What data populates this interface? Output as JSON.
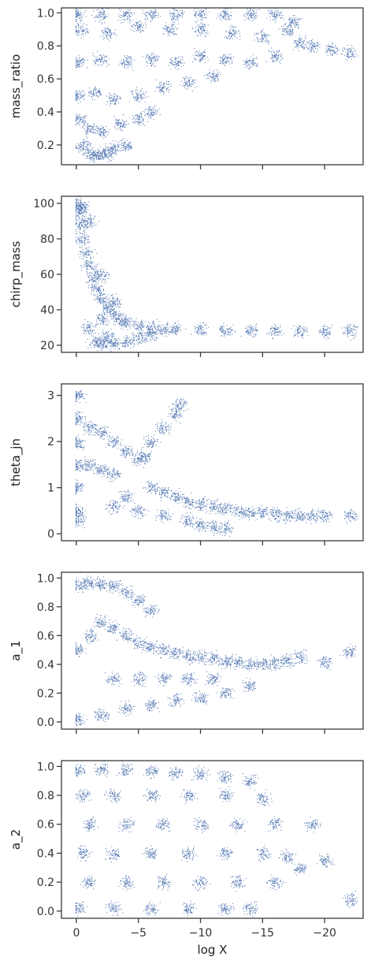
{
  "chart_data": [
    {
      "type": "scatter",
      "ylabel": "mass_ratio",
      "xlabel": "",
      "xlim": [
        1.2,
        -23.1
      ],
      "ylim": [
        0.08,
        1.03
      ],
      "yticks": [
        0.2,
        0.4,
        0.6,
        0.8,
        1.0
      ],
      "ytick_labels": [
        "0.2",
        "0.4",
        "0.6",
        "0.8",
        "1.0"
      ],
      "xticks": [
        0,
        -5,
        -10,
        -15,
        -20
      ],
      "xtick_labels": [],
      "series": [
        {
          "color": "#4c72b0",
          "points": [
            [
              -0.1,
              0.99
            ],
            [
              -2.0,
              0.99
            ],
            [
              -4.0,
              0.99
            ],
            [
              -6.0,
              0.99
            ],
            [
              -8.0,
              0.99
            ],
            [
              -10.0,
              0.99
            ],
            [
              -12.0,
              0.99
            ],
            [
              -14.0,
              0.99
            ],
            [
              -16.0,
              0.99
            ],
            [
              -0.3,
              0.9
            ],
            [
              -2.5,
              0.88
            ],
            [
              -5.0,
              0.92
            ],
            [
              -7.5,
              0.9
            ],
            [
              -10.0,
              0.9
            ],
            [
              -12.5,
              0.88
            ],
            [
              -15.0,
              0.86
            ],
            [
              -17.0,
              0.9
            ],
            [
              -0.2,
              0.7
            ],
            [
              -2.0,
              0.72
            ],
            [
              -4.0,
              0.7
            ],
            [
              -6.0,
              0.72
            ],
            [
              -8.0,
              0.7
            ],
            [
              -10.0,
              0.74
            ],
            [
              -12.0,
              0.72
            ],
            [
              -14.0,
              0.7
            ],
            [
              -16.0,
              0.74
            ],
            [
              -0.1,
              0.5
            ],
            [
              -1.5,
              0.52
            ],
            [
              -3.0,
              0.48
            ],
            [
              -5.0,
              0.5
            ],
            [
              -7.0,
              0.55
            ],
            [
              -9.0,
              0.58
            ],
            [
              -11.0,
              0.62
            ],
            [
              -0.2,
              0.35
            ],
            [
              -1.0,
              0.3
            ],
            [
              -2.0,
              0.28
            ],
            [
              -3.5,
              0.33
            ],
            [
              -5.0,
              0.36
            ],
            [
              -6.0,
              0.4
            ],
            [
              -0.5,
              0.2
            ],
            [
              -1.0,
              0.15
            ],
            [
              -1.5,
              0.14
            ],
            [
              -2.0,
              0.14
            ],
            [
              -2.5,
              0.15
            ],
            [
              -3.0,
              0.18
            ],
            [
              -4.0,
              0.2
            ],
            [
              -18.0,
              0.82
            ],
            [
              -19.0,
              0.8
            ],
            [
              -20.5,
              0.78
            ],
            [
              -22.0,
              0.76
            ],
            [
              -17.5,
              0.95
            ]
          ]
        }
      ]
    },
    {
      "type": "scatter",
      "ylabel": "chirp_mass",
      "xlabel": "",
      "xlim": [
        1.2,
        -23.1
      ],
      "ylim": [
        16,
        104
      ],
      "yticks": [
        20,
        40,
        60,
        80,
        100
      ],
      "ytick_labels": [
        "20",
        "40",
        "60",
        "80",
        "100"
      ],
      "xticks": [
        0,
        -5,
        -10,
        -15,
        -20
      ],
      "xtick_labels": [],
      "series": [
        {
          "color": "#4c72b0",
          "points": [
            [
              -0.1,
              100
            ],
            [
              -0.2,
              95
            ],
            [
              -0.3,
              88
            ],
            [
              -0.5,
              80
            ],
            [
              -0.8,
              72
            ],
            [
              -1.0,
              65
            ],
            [
              -1.3,
              58
            ],
            [
              -1.6,
              52
            ],
            [
              -2.0,
              47
            ],
            [
              -2.5,
              42
            ],
            [
              -3.0,
              38
            ],
            [
              -3.5,
              35
            ],
            [
              -4.0,
              33
            ],
            [
              -5.0,
              31
            ],
            [
              -6.0,
              30
            ],
            [
              -7.0,
              29.5
            ],
            [
              -8.0,
              29
            ],
            [
              -10.0,
              28.8
            ],
            [
              -12.0,
              28.5
            ],
            [
              -14.0,
              28.3
            ],
            [
              -16.0,
              28.2
            ],
            [
              -18.0,
              28
            ],
            [
              -20.0,
              28
            ],
            [
              -22.0,
              28
            ],
            [
              -1.5,
              22
            ],
            [
              -2.0,
              21
            ],
            [
              -3.0,
              21
            ],
            [
              -4.0,
              22
            ],
            [
              -5.0,
              24
            ],
            [
              -6.0,
              26
            ],
            [
              -1.0,
              30
            ],
            [
              -2.0,
              35
            ],
            [
              -2.5,
              25
            ],
            [
              -0.5,
              98
            ],
            [
              -1.0,
              90
            ],
            [
              -2.0,
              60
            ],
            [
              -3.0,
              45
            ]
          ]
        }
      ]
    },
    {
      "type": "scatter",
      "ylabel": "theta_jn",
      "xlabel": "",
      "xlim": [
        1.2,
        -23.1
      ],
      "ylim": [
        -0.15,
        3.25
      ],
      "yticks": [
        0,
        1,
        2,
        3
      ],
      "ytick_labels": [
        "0",
        "1",
        "2",
        "3"
      ],
      "xticks": [
        0,
        -5,
        -10,
        -15,
        -20
      ],
      "xtick_labels": [],
      "series": [
        {
          "color": "#4c72b0",
          "points": [
            [
              -0.1,
              3.0
            ],
            [
              -0.1,
              2.5
            ],
            [
              -0.1,
              2.0
            ],
            [
              -0.1,
              1.5
            ],
            [
              -0.1,
              1.0
            ],
            [
              -0.1,
              0.5
            ],
            [
              -0.1,
              0.3
            ],
            [
              -1.0,
              2.3
            ],
            [
              -2.0,
              2.2
            ],
            [
              -3.0,
              2.0
            ],
            [
              -4.0,
              1.8
            ],
            [
              -5.0,
              1.6
            ],
            [
              -1.0,
              1.5
            ],
            [
              -2.0,
              1.4
            ],
            [
              -3.0,
              1.3
            ],
            [
              -6.0,
              2.0
            ],
            [
              -7.0,
              2.3
            ],
            [
              -8.0,
              2.6
            ],
            [
              -8.3,
              2.8
            ],
            [
              -5.5,
              1.7
            ],
            [
              -6.0,
              1.0
            ],
            [
              -7.0,
              0.9
            ],
            [
              -8.0,
              0.8
            ],
            [
              -9.0,
              0.7
            ],
            [
              -10.0,
              0.65
            ],
            [
              -11.0,
              0.6
            ],
            [
              -12.0,
              0.55
            ],
            [
              -13.0,
              0.5
            ],
            [
              -14.0,
              0.47
            ],
            [
              -15.0,
              0.45
            ],
            [
              -16.0,
              0.42
            ],
            [
              -17.0,
              0.41
            ],
            [
              -18.0,
              0.4
            ],
            [
              -19.0,
              0.4
            ],
            [
              -20.0,
              0.4
            ],
            [
              -22.0,
              0.4
            ],
            [
              -9.0,
              0.3
            ],
            [
              -10.0,
              0.2
            ],
            [
              -11.0,
              0.15
            ],
            [
              -12.0,
              0.12
            ],
            [
              -3.0,
              0.6
            ],
            [
              -4.0,
              0.8
            ],
            [
              -5.0,
              0.5
            ],
            [
              -7.0,
              0.4
            ]
          ]
        }
      ]
    },
    {
      "type": "scatter",
      "ylabel": "a_1",
      "xlabel": "",
      "xlim": [
        1.2,
        -23.1
      ],
      "ylim": [
        -0.05,
        1.04
      ],
      "yticks": [
        0.0,
        0.2,
        0.4,
        0.6,
        0.8,
        1.0
      ],
      "ytick_labels": [
        "0.0",
        "0.2",
        "0.4",
        "0.6",
        "0.8",
        "1.0"
      ],
      "xticks": [
        0,
        -5,
        -10,
        -15,
        -20
      ],
      "xtick_labels": [],
      "series": [
        {
          "color": "#4c72b0",
          "points": [
            [
              -0.2,
              0.95
            ],
            [
              -1.0,
              0.97
            ],
            [
              -2.0,
              0.96
            ],
            [
              -3.0,
              0.95
            ],
            [
              -4.0,
              0.9
            ],
            [
              -5.0,
              0.85
            ],
            [
              -6.0,
              0.78
            ],
            [
              -0.1,
              0.5
            ],
            [
              -1.0,
              0.6
            ],
            [
              -2.0,
              0.7
            ],
            [
              -3.0,
              0.65
            ],
            [
              -4.0,
              0.6
            ],
            [
              -5.0,
              0.55
            ],
            [
              -6.0,
              0.52
            ],
            [
              -7.0,
              0.5
            ],
            [
              -8.0,
              0.48
            ],
            [
              -9.0,
              0.46
            ],
            [
              -10.0,
              0.45
            ],
            [
              -11.0,
              0.44
            ],
            [
              -12.0,
              0.42
            ],
            [
              -13.0,
              0.42
            ],
            [
              -14.0,
              0.4
            ],
            [
              -15.0,
              0.4
            ],
            [
              -16.0,
              0.41
            ],
            [
              -17.0,
              0.43
            ],
            [
              -18.0,
              0.45
            ],
            [
              -20.0,
              0.42
            ],
            [
              -22.0,
              0.49
            ],
            [
              -0.1,
              0.02
            ],
            [
              -2.0,
              0.05
            ],
            [
              -4.0,
              0.1
            ],
            [
              -6.0,
              0.12
            ],
            [
              -8.0,
              0.15
            ],
            [
              -10.0,
              0.18
            ],
            [
              -12.0,
              0.2
            ],
            [
              -14.0,
              0.25
            ],
            [
              -3.0,
              0.3
            ],
            [
              -5.0,
              0.3
            ],
            [
              -7.0,
              0.3
            ],
            [
              -9.0,
              0.3
            ],
            [
              -11.0,
              0.3
            ]
          ]
        }
      ]
    },
    {
      "type": "scatter",
      "ylabel": "a_2",
      "xlabel": "log X",
      "xlim": [
        1.2,
        -23.1
      ],
      "ylim": [
        -0.05,
        1.04
      ],
      "yticks": [
        0.0,
        0.2,
        0.4,
        0.6,
        0.8,
        1.0
      ],
      "ytick_labels": [
        "0.0",
        "0.2",
        "0.4",
        "0.6",
        "0.8",
        "1.0"
      ],
      "xticks": [
        0,
        -5,
        -10,
        -15,
        -20
      ],
      "xtick_labels": [
        "0",
        "−5",
        "−10",
        "−15",
        "−20"
      ],
      "series": [
        {
          "color": "#4c72b0",
          "points": [
            [
              -0.1,
              0.98
            ],
            [
              -2.0,
              0.98
            ],
            [
              -4.0,
              0.98
            ],
            [
              -6.0,
              0.97
            ],
            [
              -8.0,
              0.96
            ],
            [
              -10.0,
              0.95
            ],
            [
              -12.0,
              0.93
            ],
            [
              -14.0,
              0.9
            ],
            [
              -0.5,
              0.8
            ],
            [
              -3.0,
              0.8
            ],
            [
              -6.0,
              0.8
            ],
            [
              -9.0,
              0.8
            ],
            [
              -12.0,
              0.8
            ],
            [
              -15.0,
              0.78
            ],
            [
              -1.0,
              0.6
            ],
            [
              -4.0,
              0.6
            ],
            [
              -7.0,
              0.6
            ],
            [
              -10.0,
              0.6
            ],
            [
              -13.0,
              0.6
            ],
            [
              -16.0,
              0.6
            ],
            [
              -0.5,
              0.4
            ],
            [
              -3.0,
              0.4
            ],
            [
              -6.0,
              0.4
            ],
            [
              -9.0,
              0.4
            ],
            [
              -12.0,
              0.4
            ],
            [
              -15.0,
              0.4
            ],
            [
              -17.0,
              0.38
            ],
            [
              -1.0,
              0.2
            ],
            [
              -4.0,
              0.2
            ],
            [
              -7.0,
              0.2
            ],
            [
              -10.0,
              0.2
            ],
            [
              -13.0,
              0.2
            ],
            [
              -16.0,
              0.2
            ],
            [
              -0.1,
              0.02
            ],
            [
              -3.0,
              0.02
            ],
            [
              -6.0,
              0.02
            ],
            [
              -9.0,
              0.02
            ],
            [
              -12.0,
              0.02
            ],
            [
              -14.0,
              0.02
            ],
            [
              -18.0,
              0.3
            ],
            [
              -19.0,
              0.6
            ],
            [
              -20.0,
              0.35
            ],
            [
              -22.0,
              0.08
            ]
          ]
        }
      ]
    }
  ]
}
